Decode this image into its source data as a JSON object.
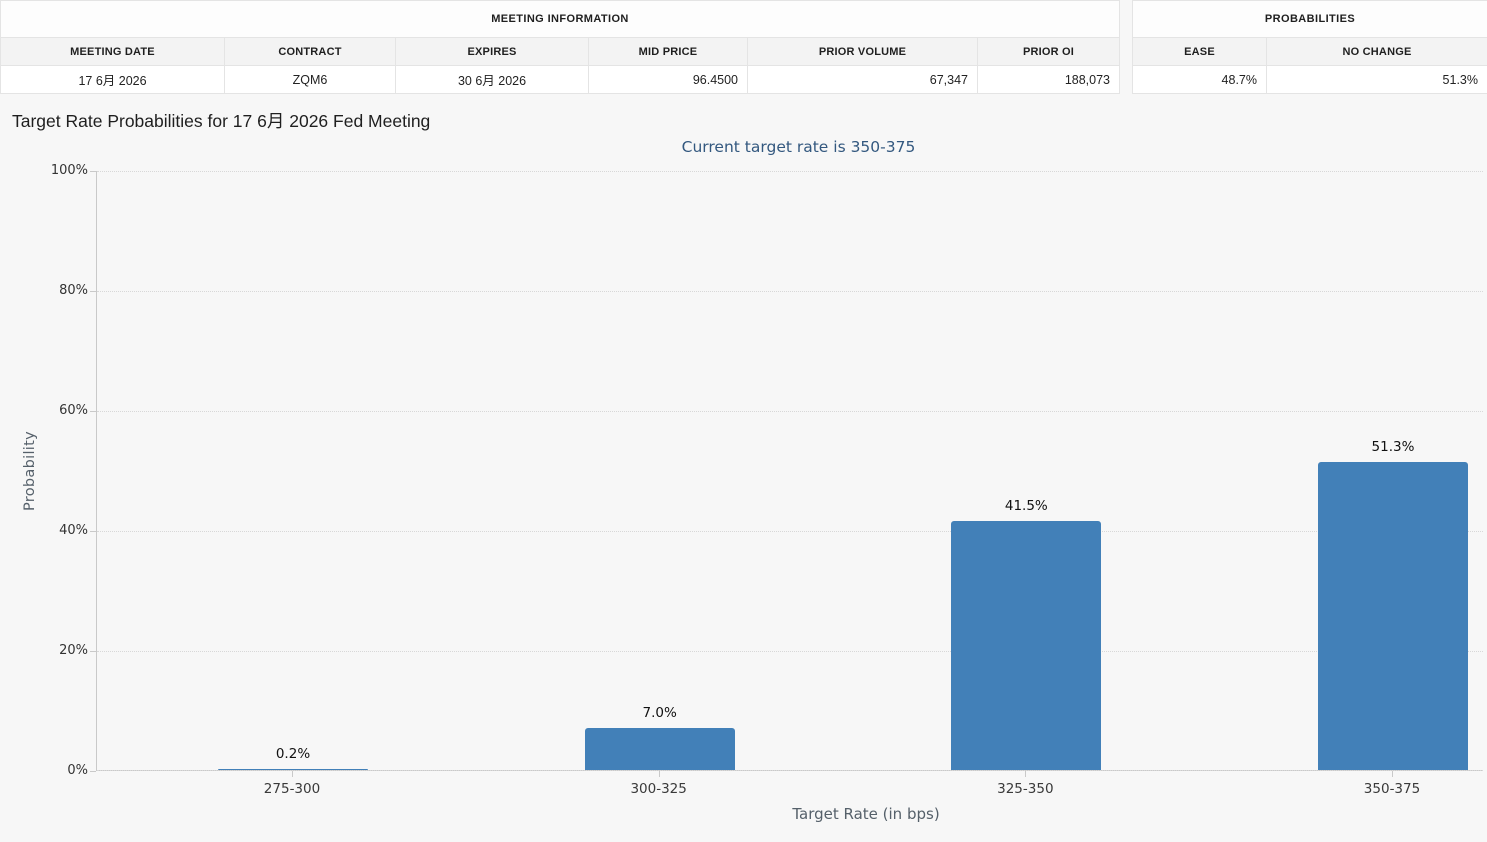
{
  "meeting_info_table": {
    "title": "MEETING INFORMATION",
    "columns": [
      {
        "label": "MEETING DATE",
        "value": "17 6月 2026"
      },
      {
        "label": "CONTRACT",
        "value": "ZQM6"
      },
      {
        "label": "EXPIRES",
        "value": "30 6月 2026"
      },
      {
        "label": "MID PRICE",
        "value": "96.4500"
      },
      {
        "label": "PRIOR VOLUME",
        "value": "67,347"
      },
      {
        "label": "PRIOR OI",
        "value": "188,073"
      }
    ]
  },
  "probabilities_table": {
    "title": "PROBABILITIES",
    "columns": [
      {
        "label": "EASE",
        "value": "48.7%"
      },
      {
        "label": "NO CHANGE",
        "value": "51.3%"
      }
    ]
  },
  "chart_data": {
    "type": "bar",
    "title": "Target Rate Probabilities for 17 6月 2026 Fed Meeting",
    "subtitle": "Current target rate is 350-375",
    "categories": [
      "275-300",
      "300-325",
      "325-350",
      "350-375"
    ],
    "values": [
      0.2,
      7.0,
      41.5,
      51.3
    ],
    "value_labels": [
      "0.2%",
      "7.0%",
      "41.5%",
      "51.3%"
    ],
    "xlabel": "Target Rate (in bps)",
    "ylabel": "Probability",
    "ylim": [
      0,
      100
    ],
    "ytick_labels": [
      "0%",
      "20%",
      "40%",
      "60%",
      "80%",
      "100%"
    ],
    "grid": "horizontal-dotted",
    "legend": "none"
  },
  "colors": {
    "bar": "#4280b8",
    "subtitle": "#33587f",
    "title": "#1f1f1f",
    "axis": "#c9c9c9",
    "grid": "#d8d8d8",
    "page_background": "#f7f7f7"
  }
}
